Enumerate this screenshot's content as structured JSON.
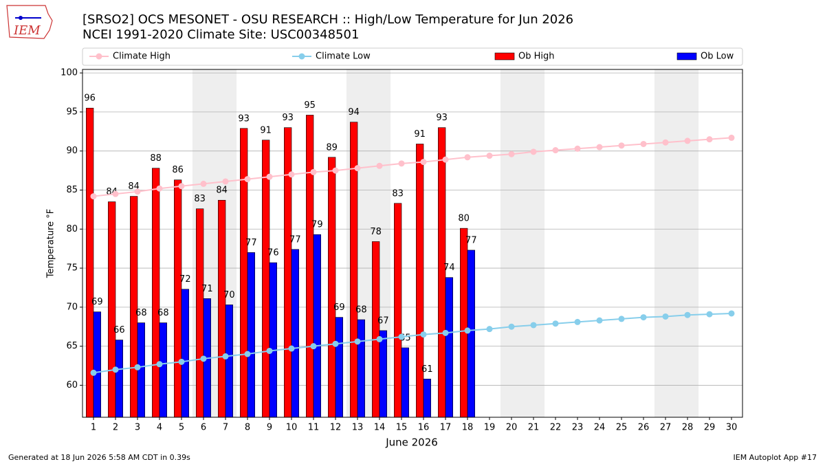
{
  "logo_text": "IEM",
  "footer_left": "Generated at 18 Jun 2026 5:58 AM CDT in 0.39s",
  "footer_right": "IEM Autoplot App #17",
  "chart_data": {
    "type": "bar_line",
    "title": "[SRSO2] OCS MESONET - OSU RESEARCH :: High/Low Temperature for Jun 2026",
    "subtitle": "NCEI 1991-2020 Climate Site: USC00348501",
    "xlabel": "June 2026",
    "ylabel": "Temperature °F",
    "x": [
      1,
      2,
      3,
      4,
      5,
      6,
      7,
      8,
      9,
      10,
      11,
      12,
      13,
      14,
      15,
      16,
      17,
      18,
      19,
      20,
      21,
      22,
      23,
      24,
      25,
      26,
      27,
      28,
      29,
      30
    ],
    "xlim": [
      0.5,
      30.5
    ],
    "xticks": [
      1,
      2,
      3,
      4,
      5,
      6,
      7,
      8,
      9,
      10,
      11,
      12,
      13,
      14,
      15,
      16,
      17,
      18,
      19,
      20,
      21,
      22,
      23,
      24,
      25,
      26,
      27,
      28,
      29,
      30
    ],
    "ylim": [
      55.9,
      100.45
    ],
    "yticks": [
      60,
      65,
      70,
      75,
      80,
      85,
      90,
      95,
      100
    ],
    "grid": true,
    "legend": "top",
    "weekend_shading": [
      [
        5.5,
        7.5
      ],
      [
        12.5,
        14.5
      ],
      [
        19.5,
        21.5
      ],
      [
        26.5,
        28.5
      ]
    ],
    "series": [
      {
        "name": "Climate High",
        "kind": "line",
        "color": "#ffc0cb",
        "values": [
          84.2,
          84.5,
          84.8,
          85.2,
          85.5,
          85.8,
          86.1,
          86.4,
          86.7,
          87.0,
          87.3,
          87.5,
          87.8,
          88.1,
          88.4,
          88.6,
          88.9,
          89.2,
          89.4,
          89.6,
          89.9,
          90.1,
          90.3,
          90.5,
          90.7,
          90.9,
          91.1,
          91.3,
          91.5,
          91.7
        ]
      },
      {
        "name": "Climate Low",
        "kind": "line",
        "color": "#87ceeb",
        "values": [
          61.6,
          62.0,
          62.3,
          62.7,
          63.0,
          63.4,
          63.7,
          64.0,
          64.4,
          64.7,
          65.0,
          65.3,
          65.6,
          65.9,
          66.2,
          66.5,
          66.7,
          67.0,
          67.2,
          67.5,
          67.7,
          67.9,
          68.1,
          68.3,
          68.5,
          68.7,
          68.8,
          69.0,
          69.1,
          69.2
        ]
      },
      {
        "name": "Ob High",
        "kind": "bar",
        "color": "#ff0000",
        "values": [
          95.5,
          83.5,
          84.2,
          87.8,
          86.3,
          82.6,
          83.7,
          92.9,
          91.4,
          93.0,
          94.6,
          89.2,
          93.7,
          78.4,
          83.3,
          90.9,
          93.0,
          80.1,
          null,
          null,
          null,
          null,
          null,
          null,
          null,
          null,
          null,
          null,
          null,
          null
        ],
        "value_labels": [
          "96",
          "84",
          "84",
          "88",
          "86",
          "83",
          "84",
          "93",
          "91",
          "93",
          "95",
          "89",
          "94",
          "78",
          "83",
          "91",
          "93",
          "80",
          null,
          null,
          null,
          null,
          null,
          null,
          null,
          null,
          null,
          null,
          null,
          null
        ]
      },
      {
        "name": "Ob Low",
        "kind": "bar",
        "color": "#0000ff",
        "values": [
          69.4,
          65.8,
          68.0,
          68.0,
          72.3,
          71.1,
          70.3,
          77.0,
          75.7,
          77.4,
          79.3,
          68.7,
          68.4,
          67.0,
          64.8,
          60.8,
          73.8,
          77.3,
          null,
          null,
          null,
          null,
          null,
          null,
          null,
          null,
          null,
          null,
          null,
          null
        ],
        "value_labels": [
          "69",
          "66",
          "68",
          "68",
          "72",
          "71",
          "70",
          "77",
          "76",
          "77",
          "79",
          "69",
          "68",
          "67",
          "65",
          "61",
          "74",
          "77",
          null,
          null,
          null,
          null,
          null,
          null,
          null,
          null,
          null,
          null,
          null,
          null
        ]
      }
    ]
  }
}
